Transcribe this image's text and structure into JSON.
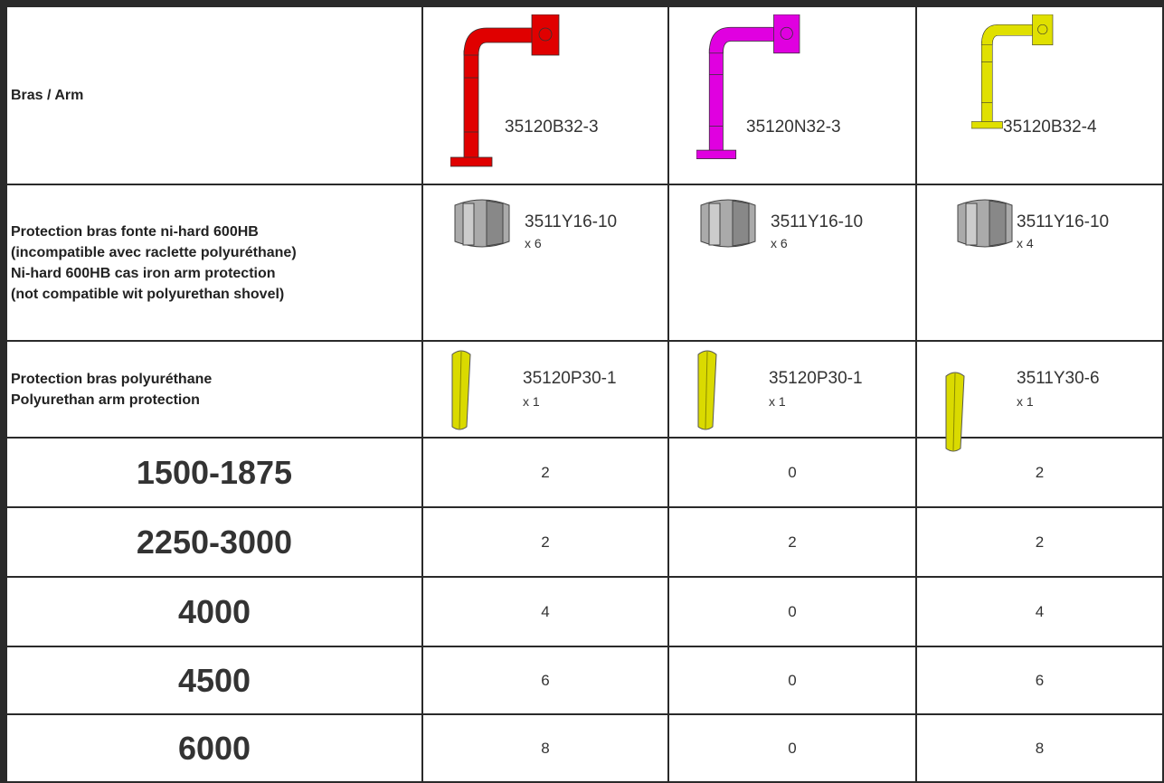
{
  "table": {
    "rows": [
      {
        "label": [
          "Bras / Arm"
        ],
        "cells": [
          {
            "code": "35120B32-3"
          },
          {
            "code": "35120N32-3"
          },
          {
            "code": "35120B32-4"
          }
        ]
      },
      {
        "label": [
          "Protection bras fonte ni-hard 600HB",
          "(incompatible avec raclette polyuréthane)",
          "Ni-hard 600HB cas iron arm protection",
          "(not compatible wit polyurethan shovel)"
        ],
        "cells": [
          {
            "code": "3511Y16-10",
            "qty": "x 6"
          },
          {
            "code": "3511Y16-10",
            "qty": "x 6"
          },
          {
            "code": "3511Y16-10",
            "qty": "x 4"
          }
        ]
      },
      {
        "label": [
          "Protection bras polyuréthane",
          "Polyurethan arm protection"
        ],
        "cells": [
          {
            "code": "35120P30-1",
            "qty": "x 1"
          },
          {
            "code": "35120P30-1",
            "qty": "x 1"
          },
          {
            "code": "3511Y30-6",
            "qty": "x 1"
          }
        ]
      }
    ],
    "sizes": [
      {
        "label": "1500-1875",
        "values": [
          2,
          0,
          2
        ]
      },
      {
        "label": "2250-3000",
        "values": [
          2,
          2,
          2
        ]
      },
      {
        "label": "4000",
        "values": [
          4,
          0,
          4
        ]
      },
      {
        "label": "4500",
        "values": [
          6,
          0,
          6
        ]
      },
      {
        "label": "6000",
        "values": [
          8,
          0,
          8
        ]
      }
    ]
  }
}
